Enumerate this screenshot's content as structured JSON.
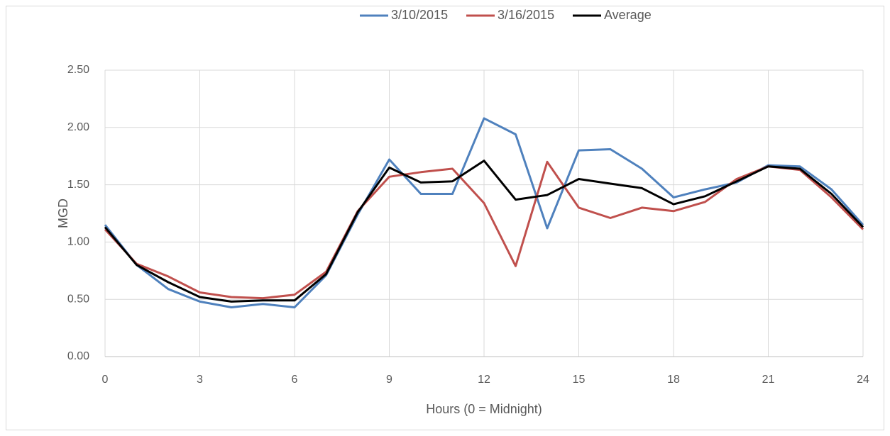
{
  "chart_data": {
    "type": "line",
    "xlabel": "Hours (0 = Midnight)",
    "ylabel": "MGD",
    "x": [
      0,
      1,
      2,
      3,
      4,
      5,
      6,
      7,
      8,
      9,
      10,
      11,
      12,
      13,
      14,
      15,
      16,
      17,
      18,
      19,
      20,
      21,
      22,
      23,
      24
    ],
    "series": [
      {
        "name": "3/10/2015",
        "color": "#4f81bd",
        "values": [
          1.15,
          0.8,
          0.59,
          0.48,
          0.43,
          0.46,
          0.43,
          0.71,
          1.24,
          1.72,
          1.42,
          1.42,
          2.08,
          1.94,
          1.12,
          1.8,
          1.81,
          1.64,
          1.39,
          1.46,
          1.52,
          1.67,
          1.66,
          1.46,
          1.15
        ]
      },
      {
        "name": "3/16/2015",
        "color": "#c0504d",
        "values": [
          1.11,
          0.81,
          0.7,
          0.56,
          0.52,
          0.51,
          0.54,
          0.74,
          1.27,
          1.57,
          1.61,
          1.64,
          1.34,
          0.79,
          1.7,
          1.3,
          1.21,
          1.3,
          1.27,
          1.35,
          1.55,
          1.66,
          1.63,
          1.39,
          1.11
        ]
      },
      {
        "name": "Average",
        "color": "#000000",
        "values": [
          1.13,
          0.8,
          0.65,
          0.52,
          0.48,
          0.49,
          0.49,
          0.72,
          1.26,
          1.65,
          1.52,
          1.53,
          1.71,
          1.37,
          1.41,
          1.55,
          1.51,
          1.47,
          1.33,
          1.4,
          1.53,
          1.66,
          1.64,
          1.42,
          1.13
        ]
      }
    ],
    "xlim": [
      0,
      24
    ],
    "xticks": [
      0,
      3,
      6,
      9,
      12,
      15,
      18,
      21,
      24
    ],
    "ylim": [
      0,
      2.5
    ],
    "yticks": [
      {
        "value": 0,
        "label": "0.00"
      },
      {
        "value": 0.5,
        "label": "0.50"
      },
      {
        "value": 1,
        "label": "1.00"
      },
      {
        "value": 1.5,
        "label": "1.50"
      },
      {
        "value": 2,
        "label": "2.00"
      },
      {
        "value": 2.5,
        "label": "2.50"
      }
    ],
    "grid": true,
    "legend": "top"
  }
}
